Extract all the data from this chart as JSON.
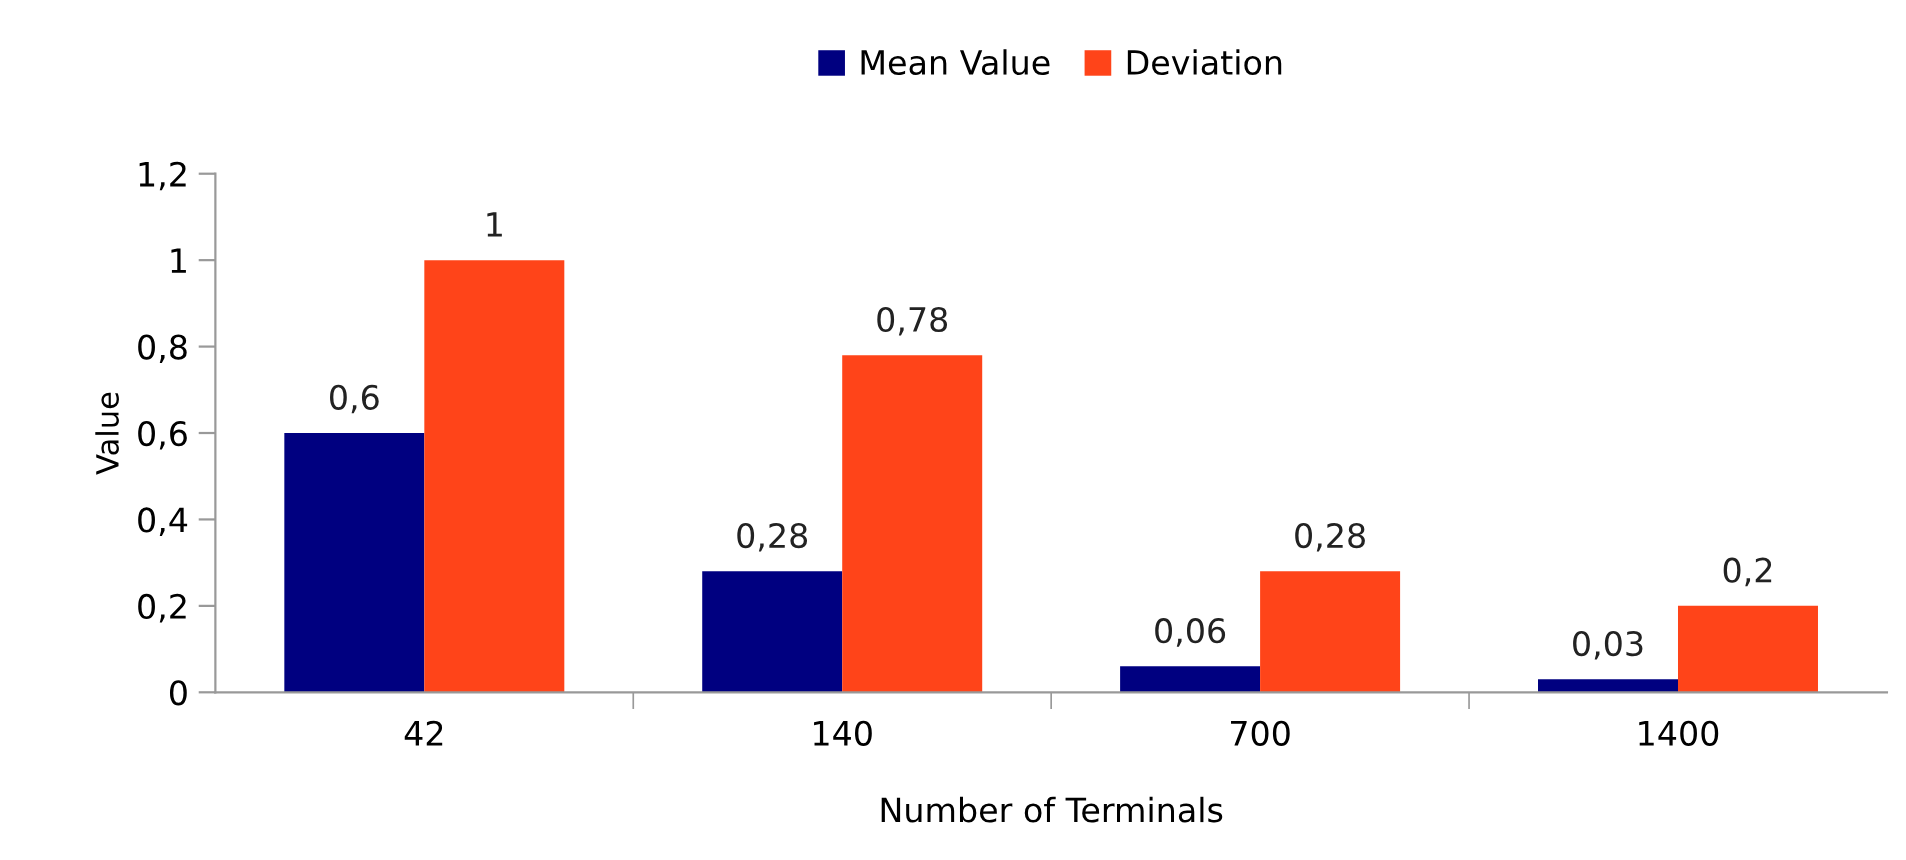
{
  "chart_data": {
    "type": "bar",
    "xlabel": "Number of Terminals",
    "ylabel": "Value",
    "categories": [
      "42",
      "140",
      "700",
      "1400"
    ],
    "series": [
      {
        "name": "Mean Value",
        "color": "#000080",
        "values": [
          0.6,
          0.28,
          0.06,
          0.03
        ],
        "value_labels": [
          "0,6",
          "0,28",
          "0,06",
          "0,03"
        ]
      },
      {
        "name": "Deviation",
        "color": "#ff4419",
        "values": [
          1,
          0.78,
          0.28,
          0.2
        ],
        "value_labels": [
          "1",
          "0,78",
          "0,28",
          "0,2"
        ]
      }
    ],
    "ylim": [
      0,
      1.2
    ],
    "yticks": [
      0,
      {
        "value": 0.2,
        "label": "0,2"
      },
      {
        "value": 0.4,
        "label": "0,4"
      },
      {
        "value": 0.6,
        "label": "0,6"
      },
      {
        "value": 0.8,
        "label": "0,8"
      },
      1,
      {
        "value": 1.2,
        "label": "1,2"
      }
    ],
    "grid": false,
    "legend": "top"
  }
}
